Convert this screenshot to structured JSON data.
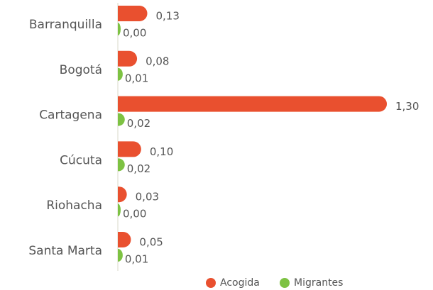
{
  "chart_data": {
    "type": "bar",
    "orientation": "horizontal",
    "categories": [
      "Barranquilla",
      "Bogotá",
      "Cartagena",
      "Cúcuta",
      "Riohacha",
      "Santa Marta"
    ],
    "series": [
      {
        "name": "Acogida",
        "color": "#e9502f",
        "values": [
          0.13,
          0.08,
          1.3,
          0.1,
          0.03,
          0.05
        ],
        "value_labels": [
          "0,13",
          "0,08",
          "1,30",
          "0,10",
          "0,03",
          "0,05"
        ]
      },
      {
        "name": "Migrantes",
        "color": "#7dc243",
        "values": [
          0.0,
          0.01,
          0.02,
          0.02,
          0.0,
          0.01
        ],
        "value_labels": [
          "0,00",
          "0,01",
          "0,02",
          "0,02",
          "0,00",
          "0,01"
        ]
      }
    ],
    "xlim": [
      0,
      1.3
    ],
    "legend": "bottom"
  }
}
